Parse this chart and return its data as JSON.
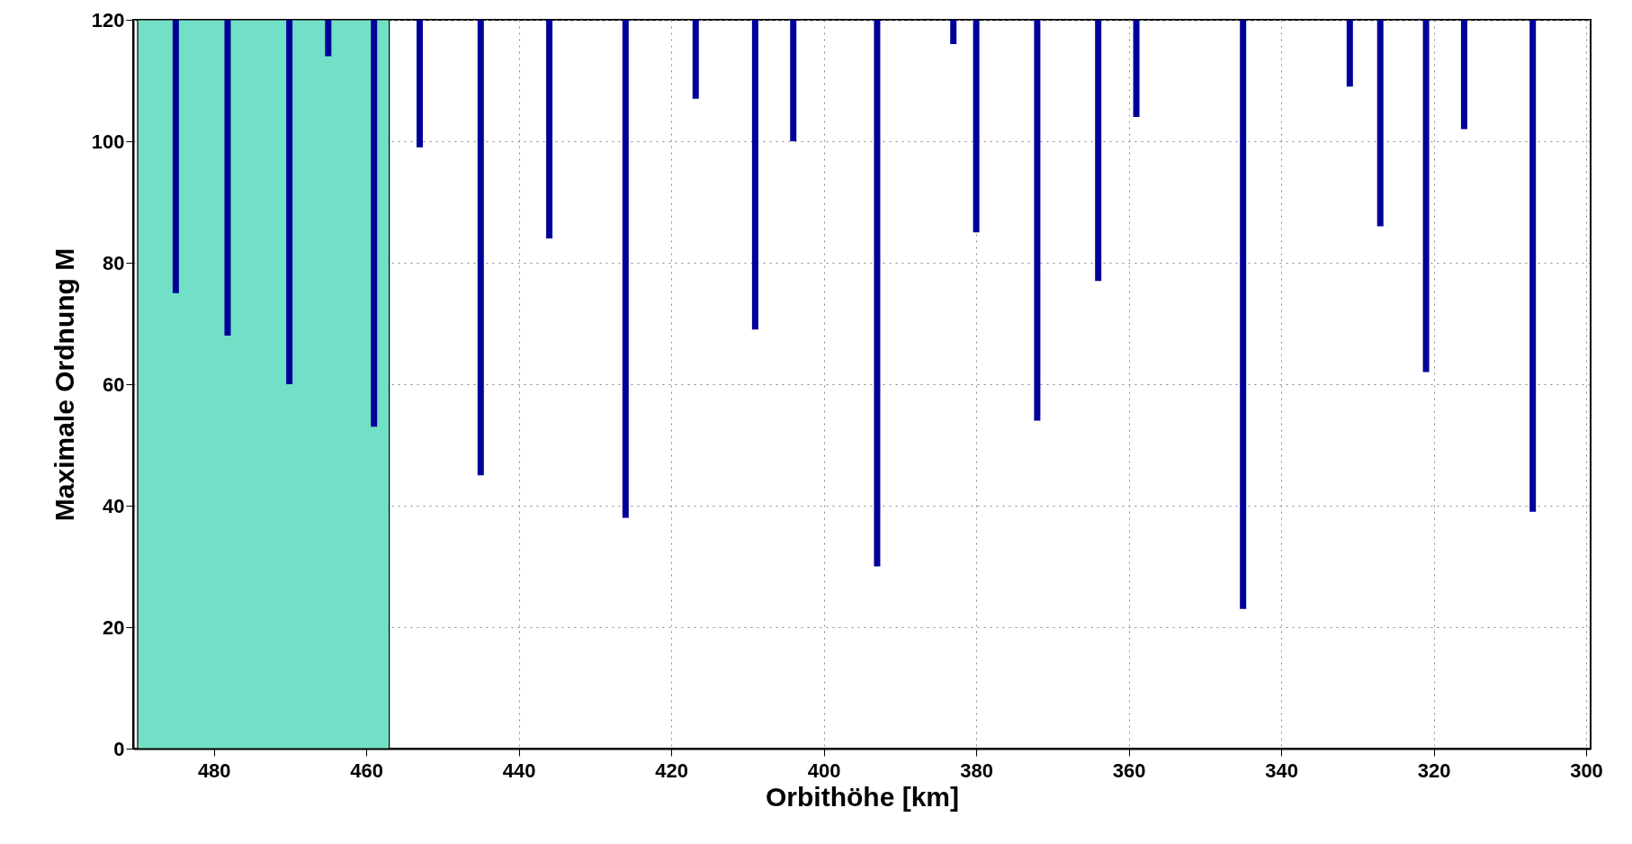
{
  "chart_data": {
    "type": "bar",
    "xlabel": "Orbithöhe [km]",
    "ylabel": "Maximale Ordnung M",
    "x": [
      485,
      478.2,
      470.1,
      465,
      459,
      453,
      445,
      436,
      426,
      416.8,
      409,
      404,
      393,
      383,
      380,
      372,
      364,
      359,
      345,
      331,
      327,
      321,
      316,
      307
    ],
    "base": [
      75,
      68,
      60,
      114,
      53,
      99,
      45,
      84,
      38,
      107,
      69,
      100,
      30,
      116,
      85,
      54,
      77,
      104,
      23,
      109,
      86,
      62,
      102,
      39
    ],
    "values": [
      45,
      52,
      60,
      6,
      67,
      21,
      75,
      36,
      82,
      13,
      51,
      20,
      90,
      4,
      35,
      66,
      43,
      16,
      97,
      11,
      34,
      58,
      18,
      81
    ],
    "color": "#000099",
    "xlim": [
      490,
      300
    ],
    "xticks": [
      480,
      460,
      440,
      420,
      400,
      380,
      360,
      340,
      320,
      300
    ],
    "ylim": [
      0,
      120
    ],
    "yticks": [
      0,
      20,
      40,
      60,
      80,
      100,
      120
    ],
    "grid": true,
    "bands": [
      {
        "axis": "x",
        "from": 490,
        "to": 457,
        "color": "#72e0c6"
      }
    ]
  }
}
